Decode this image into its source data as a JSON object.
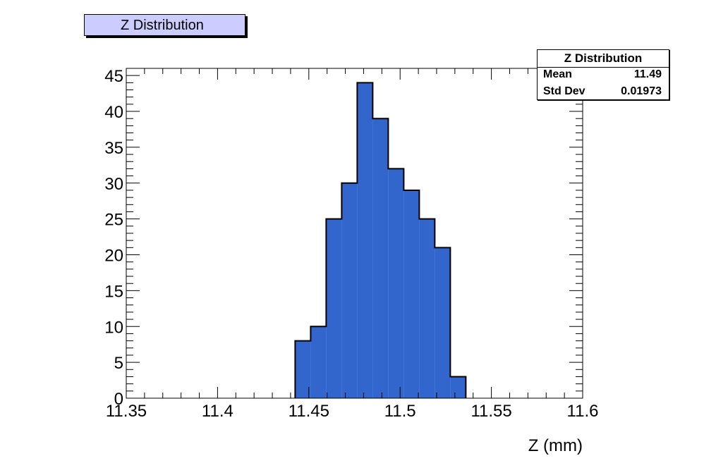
{
  "header": {
    "title_label": "Z Distribution"
  },
  "stats": {
    "title": "Z Distribution",
    "rows": [
      {
        "key": "Mean",
        "value": "11.49"
      },
      {
        "key": "Std Dev",
        "value": "0.01973"
      }
    ]
  },
  "chart_data": {
    "type": "bar",
    "histogram": true,
    "xlabel": "Z (mm)",
    "ylabel": "",
    "xlim": [
      11.35,
      11.6
    ],
    "ylim": [
      0,
      46
    ],
    "x_ticks": [
      11.35,
      11.4,
      11.45,
      11.5,
      11.55,
      11.6
    ],
    "x_tick_labels": [
      "11.35",
      "11.4",
      "11.45",
      "11.5",
      "11.55",
      "11.6"
    ],
    "y_ticks": [
      0,
      5,
      10,
      15,
      20,
      25,
      30,
      35,
      40,
      45
    ],
    "y_tick_labels": [
      "0",
      "5",
      "10",
      "15",
      "20",
      "25",
      "30",
      "35",
      "40",
      "45"
    ],
    "bin_edges": [
      11.4425,
      11.451,
      11.4595,
      11.468,
      11.4765,
      11.485,
      11.4935,
      11.502,
      11.5105,
      11.519,
      11.5275
    ],
    "values": [
      8,
      10,
      25,
      30,
      44,
      39,
      32,
      29,
      25,
      21,
      3
    ],
    "bin_width": 0.0085,
    "fill_color": "#3366cc",
    "line_color": "#000000",
    "grid": false
  }
}
